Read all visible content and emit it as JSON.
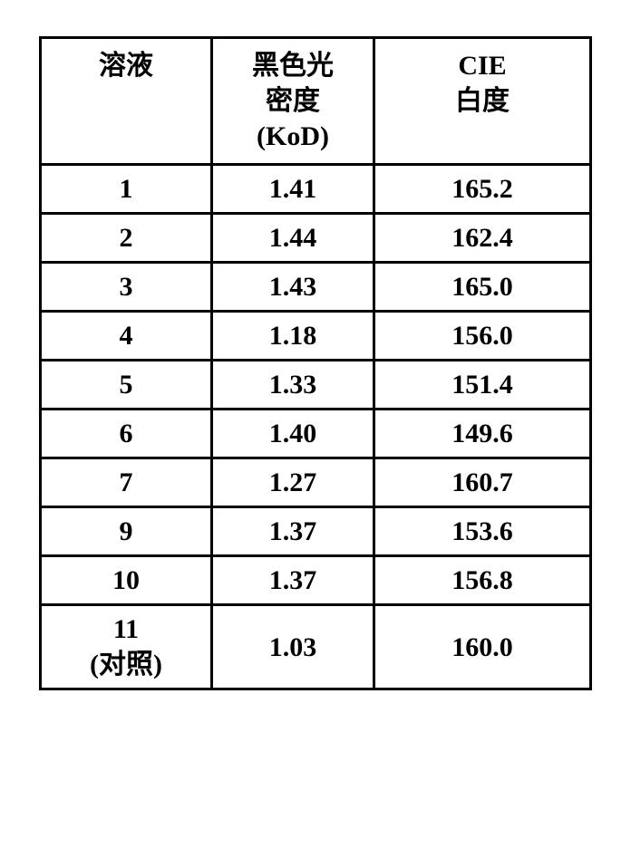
{
  "table": {
    "columns": [
      {
        "label": "溶液"
      },
      {
        "label_line1": "黑色光",
        "label_line2": "密度",
        "label_line3": "(KoD)"
      },
      {
        "label_line1": "CIE",
        "label_line2": "白度"
      }
    ],
    "rows": [
      {
        "c1": "1",
        "c2": "1.41",
        "c3": "165.2"
      },
      {
        "c1": "2",
        "c2": "1.44",
        "c3": "162.4"
      },
      {
        "c1": "3",
        "c2": "1.43",
        "c3": "165.0"
      },
      {
        "c1": "4",
        "c2": "1.18",
        "c3": "156.0"
      },
      {
        "c1": "5",
        "c2": "1.33",
        "c3": "151.4"
      },
      {
        "c1": "6",
        "c2": "1.40",
        "c3": "149.6"
      },
      {
        "c1": "7",
        "c2": "1.27",
        "c3": "160.7"
      },
      {
        "c1": "9",
        "c2": "1.37",
        "c3": "153.6"
      },
      {
        "c1": "10",
        "c2": "1.37",
        "c3": "156.8"
      },
      {
        "c1_line1": "11",
        "c1_line2": "(对照)",
        "c2": "1.03",
        "c3": "160.0"
      }
    ],
    "border_color": "#000000",
    "background_color": "#ffffff",
    "cell_font_size": 30,
    "font_weight": "bold"
  }
}
